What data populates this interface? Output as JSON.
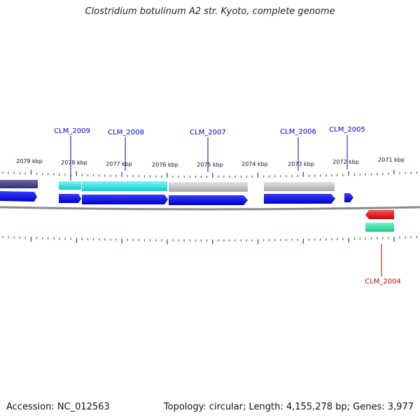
{
  "title": "Clostridium botulinum A2 str. Kyoto, complete genome",
  "footer": {
    "accession": "Accession: NC_012563",
    "stats": "Topology: circular; Length: 4,155,278 bp; Genes: 3,977"
  },
  "colors": {
    "tick": "#2a8a2a",
    "backbone": "#8a8a8a",
    "cds": "#0000ee",
    "label_blue": "#0000cc",
    "label_red": "#cc0000",
    "highlight_cyan": "#22dddd",
    "highlight_grey": "#c8c8c8",
    "highlight_navy": "#4a4a86",
    "highlight_red": "#ee0000",
    "highlight_green": "#22dd99"
  },
  "ruler": [
    "2079 kbp",
    "2078 kbp",
    "2077 kbp",
    "2076 kbp",
    "2075 kbp",
    "2074 kbp",
    "2073 kbp",
    "2072 kbp",
    "2071 kbp"
  ],
  "genes": [
    {
      "name": "CLM_2009",
      "color": "#0000cc"
    },
    {
      "name": "CLM_2008",
      "color": "#0000cc"
    },
    {
      "name": "CLM_2007",
      "color": "#0000cc"
    },
    {
      "name": "CLM_2006",
      "color": "#0000cc"
    },
    {
      "name": "CLM_2005",
      "color": "#0000cc"
    },
    {
      "name": "CLM_2004",
      "color": "#cc0000"
    }
  ]
}
